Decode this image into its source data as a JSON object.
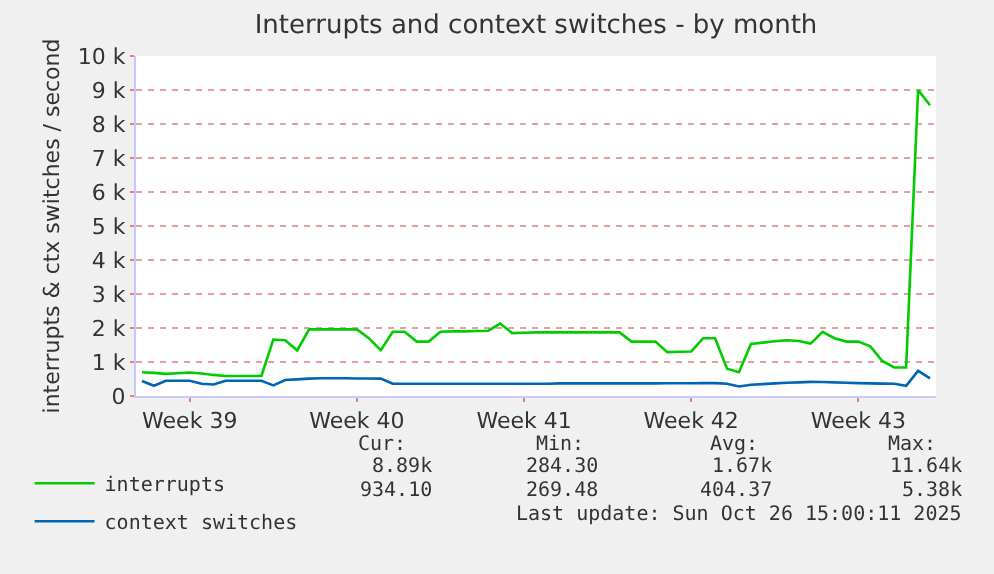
{
  "chart_data": {
    "type": "line",
    "title": "Interrupts and context switches - by month",
    "ylabel": "interrupts & ctx switches / second",
    "categories": [
      null,
      null,
      null,
      null,
      "Week 39",
      null,
      null,
      null,
      null,
      null,
      null,
      null,
      null,
      null,
      null,
      null,
      null,
      null,
      "Week 40",
      null,
      null,
      null,
      null,
      null,
      null,
      null,
      null,
      null,
      null,
      null,
      null,
      null,
      "Week 41",
      null,
      null,
      null,
      null,
      null,
      null,
      null,
      null,
      null,
      null,
      null,
      null,
      null,
      "Week 42",
      null,
      null,
      null,
      null,
      null,
      null,
      null,
      null,
      null,
      null,
      null,
      null,
      null,
      "Week 43",
      null,
      null,
      null,
      null,
      null,
      null
    ],
    "ylim": [
      0,
      10000
    ],
    "yticks": [
      {
        "value": 0,
        "label": "0"
      },
      {
        "value": 1000,
        "label": "1 k"
      },
      {
        "value": 2000,
        "label": "2 k"
      },
      {
        "value": 3000,
        "label": "3 k"
      },
      {
        "value": 4000,
        "label": "4 k"
      },
      {
        "value": 5000,
        "label": "5 k"
      },
      {
        "value": 6000,
        "label": "6 k"
      },
      {
        "value": 7000,
        "label": "7 k"
      },
      {
        "value": 8000,
        "label": "8 k"
      },
      {
        "value": 9000,
        "label": "9 k"
      },
      {
        "value": 10000,
        "label": "10 k"
      }
    ],
    "grid": "y",
    "legend": "bottom",
    "marker": "none",
    "line_style": "solid",
    "series": [
      {
        "name": "interrupts",
        "color": "#00cc00",
        "values": [
          700,
          680,
          650,
          670,
          690,
          660,
          620,
          590,
          590,
          590,
          590,
          1660,
          1640,
          1340,
          1960,
          1960,
          1960,
          1960,
          1960,
          1700,
          1350,
          1890,
          1890,
          1600,
          1600,
          1890,
          1900,
          1900,
          1910,
          1920,
          2130,
          1850,
          1860,
          1870,
          1870,
          1870,
          1870,
          1870,
          1870,
          1870,
          1870,
          1600,
          1600,
          1600,
          1290,
          1300,
          1310,
          1700,
          1700,
          800,
          700,
          1530,
          1570,
          1610,
          1640,
          1620,
          1540,
          1890,
          1700,
          1600,
          1600,
          1460,
          1030,
          840,
          840,
          9000,
          8550
        ]
      },
      {
        "name": "context switches",
        "color": "#0066b3",
        "values": [
          440,
          300,
          450,
          450,
          450,
          360,
          340,
          450,
          450,
          450,
          450,
          310,
          470,
          490,
          510,
          520,
          520,
          520,
          515,
          515,
          510,
          360,
          360,
          360,
          360,
          360,
          360,
          360,
          360,
          360,
          360,
          360,
          360,
          360,
          360,
          370,
          370,
          370,
          370,
          370,
          370,
          370,
          370,
          370,
          375,
          375,
          375,
          380,
          380,
          360,
          280,
          330,
          350,
          370,
          390,
          400,
          415,
          410,
          400,
          390,
          380,
          370,
          365,
          360,
          300,
          740,
          520
        ]
      }
    ],
    "annotations": [
      "Cur:",
      "Min:",
      "Avg:",
      "Max:",
      "8.89k",
      "284.30",
      "1.67k",
      "11.64k",
      "934.10",
      "269.48",
      "404.37",
      "5.38k",
      "Last update: Sun Oct 26 15:00:11 2025"
    ]
  }
}
